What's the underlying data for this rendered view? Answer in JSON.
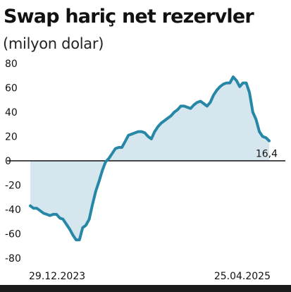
{
  "header": {
    "title": "Swap hariç net rezervler",
    "subtitle": "(milyon dolar)"
  },
  "colors": {
    "line": "#2787a6",
    "fill": "#d6e6ee",
    "axis": "#111111",
    "bottom_bar": "#1b1b1b"
  },
  "chart_data": {
    "type": "area",
    "title": "Swap hariç net rezervler",
    "subtitle": "(milyon dolar)",
    "ylim": [
      -80,
      80
    ],
    "yticks": [
      80,
      60,
      40,
      20,
      0,
      -20,
      -40,
      -60,
      -80
    ],
    "ytick_labels": [
      "80",
      "60",
      "40",
      "20",
      "0",
      "-20",
      "-40",
      "-60",
      "-80"
    ],
    "x_start_label": "29.12.2023",
    "x_end_label": "25.04.2025",
    "end_value_label": "16,4",
    "grid": false,
    "series": [
      {
        "values": [
          -37,
          -39,
          -39,
          -41,
          -43,
          -44,
          -45,
          -44,
          -44,
          -47,
          -48,
          -52,
          -56,
          -61,
          -65,
          -65,
          -55,
          -53,
          -48,
          -36,
          -25,
          -17,
          -8,
          -1,
          2,
          6,
          10,
          11,
          11,
          16,
          21,
          22,
          23,
          24,
          24,
          23,
          20,
          18,
          24,
          28,
          31,
          33,
          35,
          37,
          40,
          42,
          45,
          45,
          44,
          43,
          46,
          48,
          49,
          47,
          45,
          48,
          54,
          58,
          61,
          63,
          64,
          64,
          69,
          66,
          61,
          64,
          64,
          56,
          40,
          34,
          24,
          20,
          19,
          16.4
        ]
      }
    ]
  }
}
